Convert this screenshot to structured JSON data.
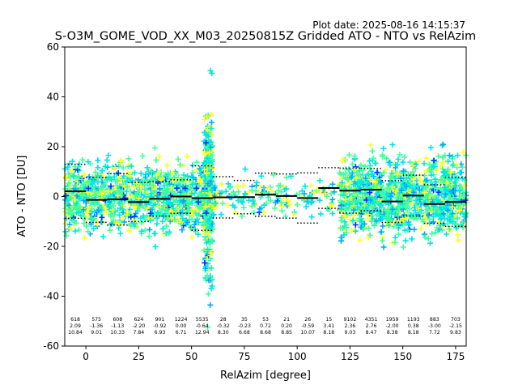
{
  "chart_data": {
    "type": "scatter",
    "title": "S-O3M_GOME_VOD_XX_M03_20250815Z Gridded ATO - NTO vs RelAzim",
    "plot_date": "Plot date: 2025-08-16 14:15:37",
    "xlabel": "RelAzim [degree]",
    "ylabel": "ATO - NTO [DU]",
    "xlim": [
      -10,
      180
    ],
    "ylim": [
      -60,
      60
    ],
    "xticks": [
      0,
      25,
      50,
      75,
      100,
      125,
      150,
      175
    ],
    "yticks": [
      -60,
      -40,
      -20,
      0,
      20,
      40,
      60
    ],
    "grid": false,
    "marker": "+",
    "point_colors": [
      "#00e5e5",
      "#44ff99",
      "#ffff22",
      "#00a8ff",
      "#0033ff"
    ],
    "point_clusters": [
      {
        "x_range": [
          -10,
          60
        ],
        "y_center": 0,
        "y_spread": 12,
        "count": 1100
      },
      {
        "x_range": [
          56,
          60
        ],
        "y_center": 0,
        "y_spread": 30,
        "count": 320
      },
      {
        "x_range": [
          60,
          118
        ],
        "y_center": 0,
        "y_spread": 7,
        "count": 160
      },
      {
        "x_range": [
          120,
          180
        ],
        "y_center": 0,
        "y_spread": 14,
        "count": 1100
      }
    ],
    "bins": [
      {
        "x_start": -10,
        "x_end": 0,
        "count": "618",
        "mean": "2.09",
        "std": "10.84"
      },
      {
        "x_start": 0,
        "x_end": 10,
        "count": "575",
        "mean": "-1.36",
        "std": "9.01"
      },
      {
        "x_start": 10,
        "x_end": 20,
        "count": "608",
        "mean": "-1.13",
        "std": "10.33"
      },
      {
        "x_start": 20,
        "x_end": 30,
        "count": "624",
        "mean": "-2.20",
        "std": "7.84"
      },
      {
        "x_start": 30,
        "x_end": 40,
        "count": "901",
        "mean": "-0.92",
        "std": "6.93"
      },
      {
        "x_start": 40,
        "x_end": 50,
        "count": "1224",
        "mean": "0.00",
        "std": "6.71"
      },
      {
        "x_start": 50,
        "x_end": 60,
        "count": "5535",
        "mean": "-0.64",
        "std": "12.94"
      },
      {
        "x_start": 60,
        "x_end": 70,
        "count": "28",
        "mean": "-0.32",
        "std": "8.30"
      },
      {
        "x_start": 70,
        "x_end": 80,
        "count": "35",
        "mean": "-0.23",
        "std": "6.68"
      },
      {
        "x_start": 80,
        "x_end": 90,
        "count": "53",
        "mean": "0.72",
        "std": "8.68"
      },
      {
        "x_start": 90,
        "x_end": 100,
        "count": "21",
        "mean": "0.20",
        "std": "8.85"
      },
      {
        "x_start": 100,
        "x_end": 110,
        "count": "26",
        "mean": "-0.59",
        "std": "10.07"
      },
      {
        "x_start": 110,
        "x_end": 120,
        "count": "15",
        "mean": "3.41",
        "std": "8.18"
      },
      {
        "x_start": 120,
        "x_end": 130,
        "count": "9102",
        "mean": "2.36",
        "std": "9.03"
      },
      {
        "x_start": 130,
        "x_end": 140,
        "count": "4351",
        "mean": "2.76",
        "std": "8.47"
      },
      {
        "x_start": 140,
        "x_end": 150,
        "count": "1959",
        "mean": "-2.00",
        "std": "8.38"
      },
      {
        "x_start": 150,
        "x_end": 160,
        "count": "1193",
        "mean": "0.38",
        "std": "8.18"
      },
      {
        "x_start": 160,
        "x_end": 170,
        "count": "883",
        "mean": "-3.00",
        "std": "7.72"
      },
      {
        "x_start": 170,
        "x_end": 180,
        "count": "703",
        "mean": "-2.15",
        "std": "9.83"
      }
    ]
  }
}
